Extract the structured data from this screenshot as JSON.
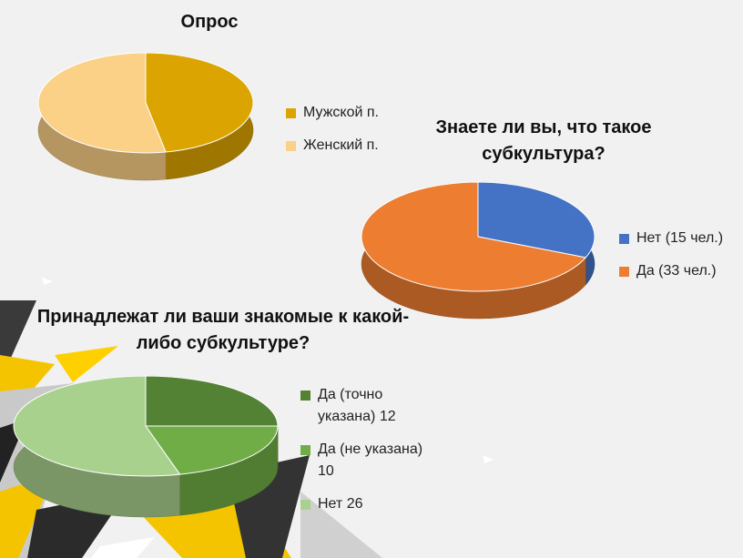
{
  "chart_data": [
    {
      "type": "pie",
      "title": "Опрос",
      "categories": [
        "Мужской п.",
        "Женский п."
      ],
      "values": [
        47,
        53
      ],
      "colors": [
        "#dba400",
        "#fbd087"
      ]
    },
    {
      "type": "pie",
      "title": "Знаете ли вы, что такое субкультура?",
      "categories": [
        "Нет (15 чел.)",
        "Да (33 чел.)"
      ],
      "values": [
        15,
        33
      ],
      "colors": [
        "#4472c4",
        "#ed7d31"
      ]
    },
    {
      "type": "pie",
      "title": "Принадлежат ли ваши знакомые к какой-либо субкультуре?",
      "categories": [
        "Да (точно указана) 12",
        "Да (не указана) 10",
        "Нет 26"
      ],
      "values": [
        12,
        10,
        26
      ],
      "colors": [
        "#548235",
        "#70ad47",
        "#a9d18e"
      ]
    }
  ]
}
